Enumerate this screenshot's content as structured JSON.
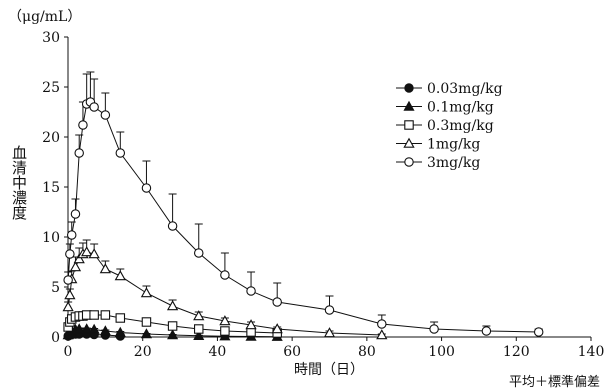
{
  "chart_data": {
    "type": "line",
    "unit_label": "（μg/mL）",
    "ylabel": "血清中濃度",
    "xlabel": "時間（日）",
    "footnote": "平均＋標準偏差",
    "xlim": [
      0,
      140
    ],
    "ylim": [
      0,
      30
    ],
    "xticks": [
      "0",
      "20",
      "40",
      "60",
      "80",
      "100",
      "120",
      "140"
    ],
    "yticks": [
      "0",
      "5",
      "10",
      "15",
      "20",
      "25",
      "30"
    ],
    "legend_position": "top-right",
    "series": [
      {
        "name": "0.03mg/kg",
        "marker": "circle-filled",
        "x": [
          0.04,
          0.5,
          1,
          2,
          3,
          5,
          7,
          10,
          14
        ],
        "y": [
          0.1,
          0.2,
          0.25,
          0.3,
          0.3,
          0.3,
          0.25,
          0.2,
          0.1
        ],
        "err": [
          0.05,
          0.05,
          0.05,
          0.05,
          0.05,
          0.05,
          0.05,
          0.05,
          0.05
        ]
      },
      {
        "name": "0.1mg/kg",
        "marker": "triangle-filled",
        "x": [
          0.04,
          1,
          2,
          3,
          5,
          7,
          10,
          14,
          21,
          28,
          35,
          42,
          49,
          56
        ],
        "y": [
          0.2,
          0.6,
          0.75,
          0.8,
          0.8,
          0.75,
          0.6,
          0.45,
          0.3,
          0.2,
          0.12,
          0.08,
          0.05,
          0.03
        ],
        "err": [
          0.05,
          0.1,
          0.1,
          0.1,
          0.1,
          0.1,
          0.1,
          0.1,
          0.05,
          0.05,
          0.05,
          0.05,
          0.05,
          0.05
        ]
      },
      {
        "name": "0.3mg/kg",
        "marker": "square-open",
        "x": [
          0.04,
          0.5,
          1,
          2,
          3,
          4,
          5,
          7,
          10,
          14,
          21,
          28,
          35,
          42,
          49,
          56
        ],
        "y": [
          1.0,
          1.5,
          1.8,
          2.0,
          2.1,
          2.1,
          2.2,
          2.2,
          2.2,
          1.9,
          1.5,
          1.1,
          0.8,
          0.6,
          0.5,
          0.4
        ],
        "err": [
          0.2,
          0.2,
          0.2,
          0.3,
          0.3,
          0.3,
          0.3,
          0.3,
          0.3,
          0.3,
          0.3,
          0.3,
          0.3,
          0.3,
          0.3,
          0.3
        ]
      },
      {
        "name": "1mg/kg",
        "marker": "triangle-open",
        "x": [
          0.04,
          0.5,
          1,
          2,
          3,
          4,
          5,
          7,
          10,
          14,
          21,
          28,
          35,
          42,
          49,
          56,
          70,
          84
        ],
        "y": [
          3.0,
          4.2,
          5.8,
          7.0,
          7.8,
          8.3,
          8.5,
          8.3,
          6.8,
          6.1,
          4.4,
          3.1,
          2.1,
          1.6,
          1.2,
          0.8,
          0.4,
          0.2
        ],
        "err": [
          0.5,
          0.6,
          0.8,
          1.0,
          1.1,
          1.1,
          1.2,
          1.0,
          0.8,
          0.7,
          0.7,
          0.6,
          0.4,
          0.3,
          0.3,
          0.2,
          0.2,
          0.1
        ]
      },
      {
        "name": "3mg/kg",
        "marker": "circle-open",
        "x": [
          0.04,
          0.5,
          1,
          2,
          3,
          4,
          5,
          6,
          7,
          10,
          14,
          21,
          28,
          35,
          42,
          49,
          56,
          70,
          84,
          98,
          112,
          126
        ],
        "y": [
          5.7,
          8.3,
          10.2,
          12.3,
          18.4,
          21.2,
          23.3,
          23.5,
          23.0,
          22.2,
          18.4,
          14.9,
          11.1,
          8.4,
          6.2,
          4.6,
          3.5,
          2.7,
          1.3,
          0.8,
          0.6,
          0.5
        ],
        "err": [
          0.8,
          1.0,
          1.3,
          1.5,
          1.8,
          2.3,
          3.0,
          3.0,
          2.8,
          2.2,
          2.1,
          2.7,
          3.2,
          2.9,
          2.2,
          1.9,
          1.9,
          1.4,
          0.9,
          0.7,
          0.5,
          0.3
        ]
      }
    ]
  }
}
